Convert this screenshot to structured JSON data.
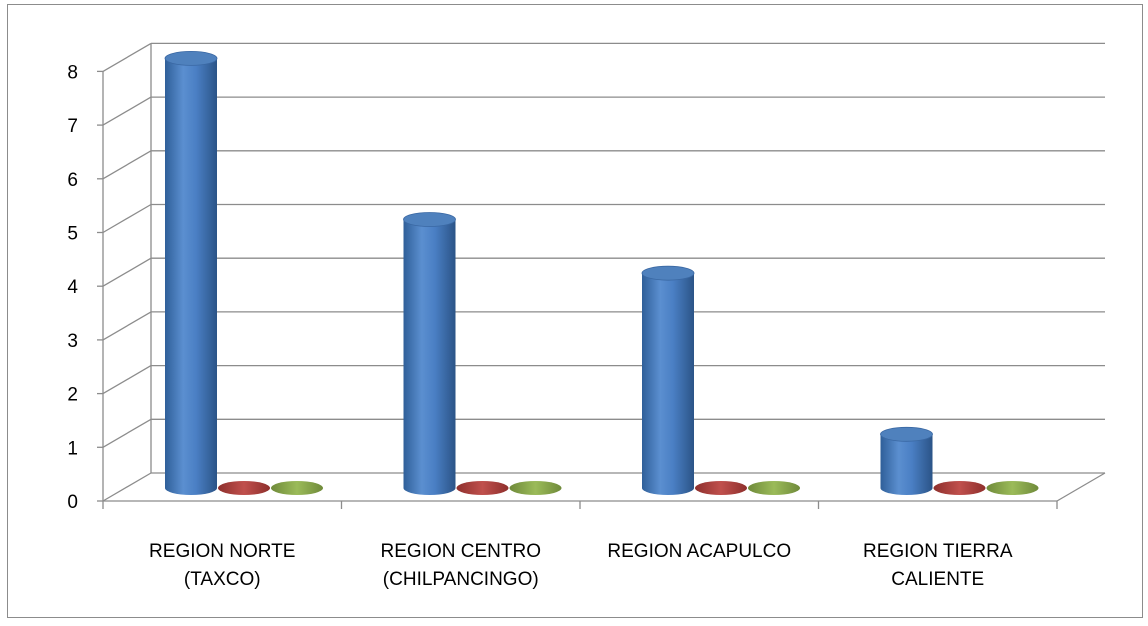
{
  "chart_data": {
    "type": "bar",
    "style": "3d-cylinder",
    "categories": [
      [
        "REGION NORTE",
        "(TAXCO)"
      ],
      [
        "REGION CENTRO",
        "(CHILPANCINGO)"
      ],
      [
        "REGION ACAPULCO"
      ],
      [
        "REGION TIERRA",
        "CALIENTE"
      ]
    ],
    "series": [
      {
        "color": "#4f81bd",
        "values": [
          8,
          5,
          4,
          1
        ]
      },
      {
        "color": "#c0504d",
        "values": [
          0,
          0,
          0,
          0
        ]
      },
      {
        "color": "#9bbb59",
        "values": [
          0,
          0,
          0,
          0
        ]
      }
    ],
    "yticks": [
      "0",
      "1",
      "2",
      "3",
      "4",
      "5",
      "6",
      "7",
      "8"
    ],
    "ylim": [
      0,
      8
    ],
    "grid": true,
    "legend": "none"
  }
}
